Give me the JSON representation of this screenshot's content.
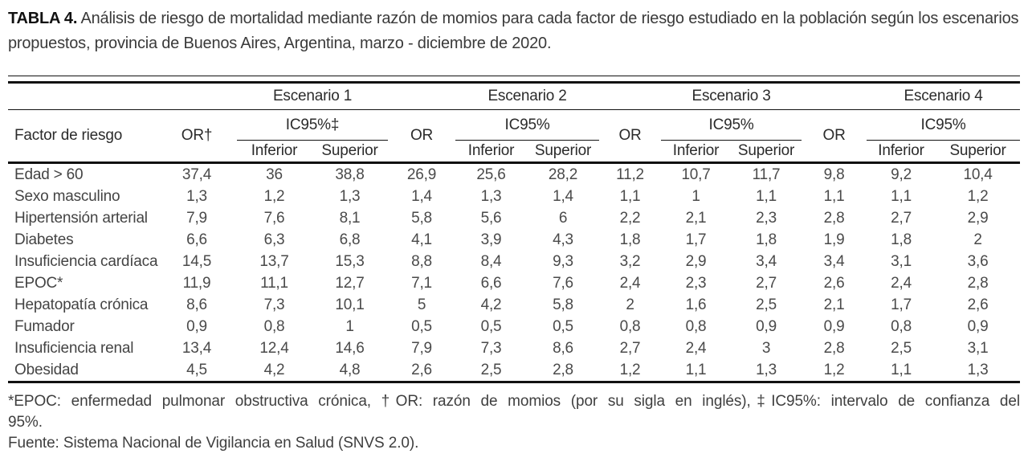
{
  "title": {
    "label": "TABLA 4.",
    "line1": "Análisis de riesgo de mortalidad mediante razón de momios para cada factor de riesgo estudiado en la población según los escenarios",
    "line2": "propuestos, provincia de Buenos Aires, Argentina, marzo - diciembre de 2020."
  },
  "table": {
    "col_header": {
      "factor": "Factor de riesgo",
      "scenarios": [
        "Escenario 1",
        "Escenario 2",
        "Escenario 3",
        "Escenario 4"
      ],
      "or": [
        "OR†",
        "OR",
        "OR",
        "OR"
      ],
      "ic": [
        "IC95%‡",
        "IC95%",
        "IC95%",
        "IC95%"
      ],
      "inferior": "Inferior",
      "superior": "Superior"
    },
    "rows": [
      {
        "factor": "Edad > 60",
        "values": [
          "37,4",
          "36",
          "38,8",
          "26,9",
          "25,6",
          "28,2",
          "11,2",
          "10,7",
          "11,7",
          "9,8",
          "9,2",
          "10,4"
        ]
      },
      {
        "factor": "Sexo masculino",
        "values": [
          "1,3",
          "1,2",
          "1,3",
          "1,4",
          "1,3",
          "1,4",
          "1,1",
          "1",
          "1,1",
          "1,1",
          "1,1",
          "1,2"
        ]
      },
      {
        "factor": "Hipertensión arterial",
        "values": [
          "7,9",
          "7,6",
          "8,1",
          "5,8",
          "5,6",
          "6",
          "2,2",
          "2,1",
          "2,3",
          "2,8",
          "2,7",
          "2,9"
        ]
      },
      {
        "factor": "Diabetes",
        "values": [
          "6,6",
          "6,3",
          "6,8",
          "4,1",
          "3,9",
          "4,3",
          "1,8",
          "1,7",
          "1,8",
          "1,9",
          "1,8",
          "2"
        ]
      },
      {
        "factor": "Insuficiencia cardíaca",
        "values": [
          "14,5",
          "13,7",
          "15,3",
          "8,8",
          "8,4",
          "9,3",
          "3,2",
          "2,9",
          "3,4",
          "3,4",
          "3,1",
          "3,6"
        ]
      },
      {
        "factor": "EPOC*",
        "values": [
          "11,9",
          "11,1",
          "12,7",
          "7,1",
          "6,6",
          "7,6",
          "2,4",
          "2,3",
          "2,7",
          "2,6",
          "2,4",
          "2,8"
        ]
      },
      {
        "factor": "Hepatopatía crónica",
        "values": [
          "8,6",
          "7,3",
          "10,1",
          "5",
          "4,2",
          "5,8",
          "2",
          "1,6",
          "2,5",
          "2,1",
          "1,7",
          "2,6"
        ]
      },
      {
        "factor": "Fumador",
        "values": [
          "0,9",
          "0,8",
          "1",
          "0,5",
          "0,5",
          "0,5",
          "0,8",
          "0,8",
          "0,9",
          "0,9",
          "0,8",
          "0,9"
        ]
      },
      {
        "factor": "Insuficiencia renal",
        "values": [
          "13,4",
          "12,4",
          "14,6",
          "7,9",
          "7,3",
          "8,6",
          "2,7",
          "2,4",
          "3",
          "2,8",
          "2,5",
          "3,1"
        ]
      },
      {
        "factor": "Obesidad",
        "values": [
          "4,5",
          "4,2",
          "4,8",
          "2,6",
          "2,5",
          "2,8",
          "1,2",
          "1,1",
          "1,3",
          "1,2",
          "1,1",
          "1,3"
        ]
      }
    ]
  },
  "footnotes": {
    "line1": "*EPOC: enfermedad pulmonar obstructiva crónica, †OR: razón de momios (por su sigla en inglés),‡IC95%: intervalo de confianza del",
    "line2": "95%.",
    "source": "Fuente: Sistema Nacional de Vigilancia en Salud (SNVS 2.0)."
  },
  "colors": {
    "rule": "#111111",
    "text": "#474747"
  }
}
